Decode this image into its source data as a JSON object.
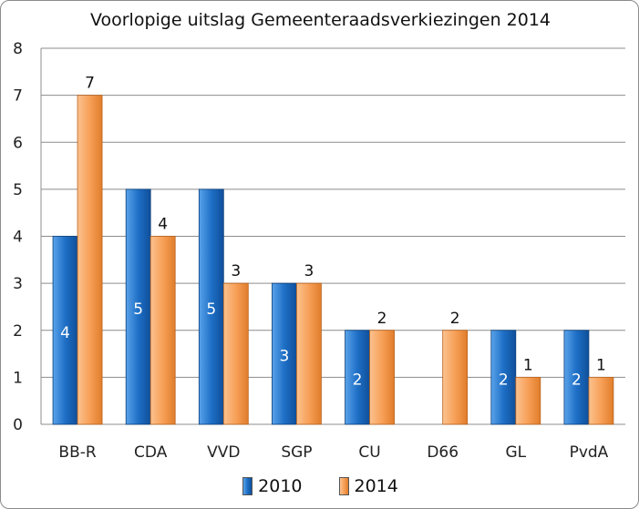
{
  "chart_data": {
    "type": "bar",
    "title": "Voorlopige uitslag Gemeenteraadsverkiezingen 2014",
    "categories": [
      "BB-R",
      "CDA",
      "VVD",
      "SGP",
      "CU",
      "D66",
      "GL",
      "PvdA"
    ],
    "series": [
      {
        "name": "2010",
        "color": "#1f6fc4",
        "values": [
          4,
          5,
          5,
          3,
          2,
          null,
          2,
          2
        ]
      },
      {
        "name": "2014",
        "color": "#f6a05a",
        "values": [
          7,
          4,
          3,
          3,
          2,
          2,
          1,
          1
        ]
      }
    ],
    "ylim": [
      0,
      8
    ],
    "yticks": [
      "0",
      "1",
      "2",
      "3",
      "4",
      "5",
      "6",
      "7",
      "8"
    ],
    "grid": true,
    "legend_position": "bottom"
  }
}
